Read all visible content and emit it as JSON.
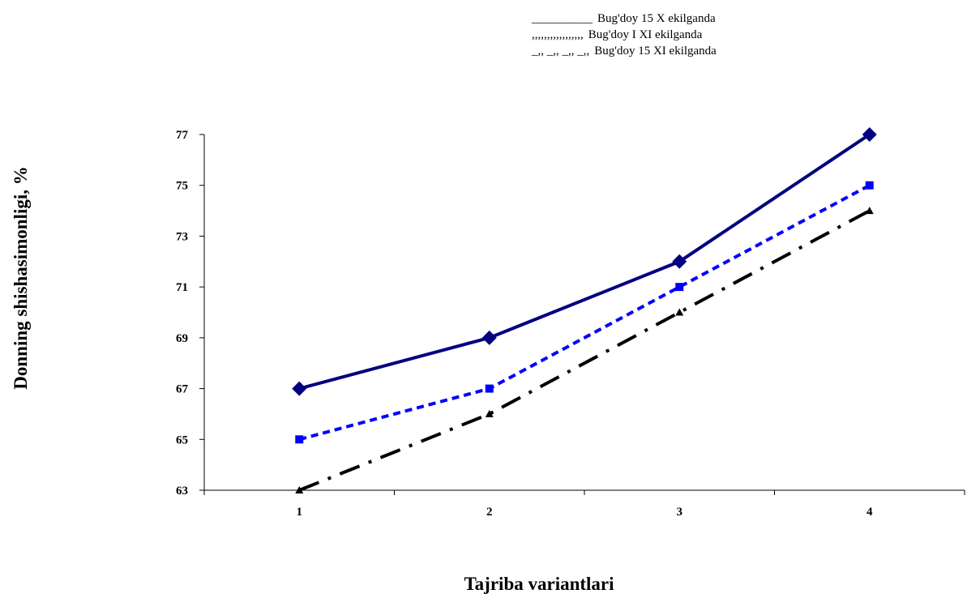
{
  "chart_data": {
    "type": "line",
    "title": "",
    "xlabel": "Tajriba variantlari",
    "ylabel": "Donning shishasimonligi, %",
    "categories": [
      "1",
      "2",
      "3",
      "4"
    ],
    "ylim": [
      63,
      77
    ],
    "yticks": [
      63,
      65,
      67,
      69,
      71,
      73,
      75,
      77
    ],
    "grid": false,
    "legend_position": "top-right",
    "series": [
      {
        "name": "Bug'doy 15 X ekilganda",
        "legend_marker": "__________",
        "values": [
          67,
          69,
          72,
          77
        ],
        "color": "#000080",
        "marker": "diamond",
        "line": "solid"
      },
      {
        "name": "Bug'doy I XI ekilganda",
        "legend_marker": ",,,,,,,,,,,,,,,,,",
        "values": [
          65,
          67,
          71,
          75
        ],
        "color": "#0000FF",
        "marker": "square",
        "line": "dashed"
      },
      {
        "name": "Bug'doy 15 XI ekilganda",
        "legend_marker": "_,, _,, _,, _,,",
        "values": [
          63,
          66,
          70,
          74
        ],
        "color": "#000000",
        "marker": "triangle",
        "line": "dash-dot"
      }
    ]
  }
}
